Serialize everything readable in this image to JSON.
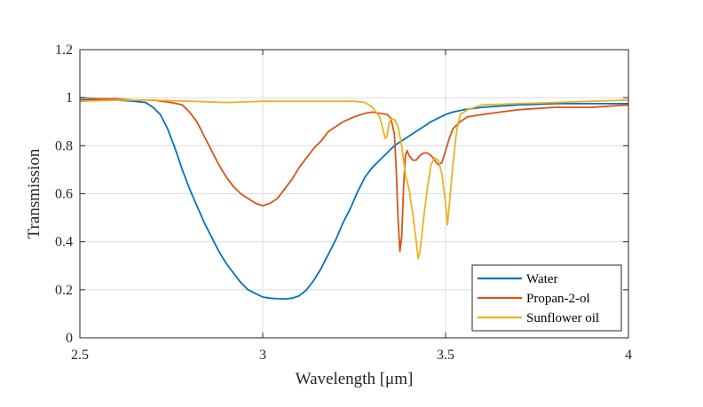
{
  "chart_data": {
    "type": "line",
    "title": "",
    "xlabel": "Wavelength [μm]",
    "ylabel": "Transmission",
    "xlim": [
      2.5,
      4
    ],
    "ylim": [
      0,
      1.2
    ],
    "xticks": [
      2.5,
      3,
      3.5,
      4
    ],
    "xtick_labels": [
      "2.5",
      "3",
      "3.5",
      "4"
    ],
    "yticks": [
      0,
      0.2,
      0.4,
      0.6,
      0.8,
      1,
      1.2
    ],
    "ytick_labels": [
      "0",
      "0.2",
      "0.4",
      "0.6",
      "0.8",
      "1",
      "1.2"
    ],
    "grid": true,
    "legend_position": "bottom-right",
    "series": [
      {
        "name": "Water",
        "color": "#0072bd",
        "points": [
          [
            2.5,
            0.99
          ],
          [
            2.55,
            0.99
          ],
          [
            2.6,
            0.99
          ],
          [
            2.65,
            0.985
          ],
          [
            2.68,
            0.98
          ],
          [
            2.7,
            0.96
          ],
          [
            2.72,
            0.93
          ],
          [
            2.74,
            0.87
          ],
          [
            2.76,
            0.79
          ],
          [
            2.78,
            0.7
          ],
          [
            2.8,
            0.62
          ],
          [
            2.82,
            0.55
          ],
          [
            2.84,
            0.48
          ],
          [
            2.86,
            0.42
          ],
          [
            2.88,
            0.36
          ],
          [
            2.9,
            0.31
          ],
          [
            2.92,
            0.27
          ],
          [
            2.94,
            0.23
          ],
          [
            2.96,
            0.2
          ],
          [
            2.98,
            0.185
          ],
          [
            3.0,
            0.17
          ],
          [
            3.02,
            0.165
          ],
          [
            3.04,
            0.163
          ],
          [
            3.06,
            0.162
          ],
          [
            3.08,
            0.165
          ],
          [
            3.1,
            0.175
          ],
          [
            3.12,
            0.2
          ],
          [
            3.14,
            0.24
          ],
          [
            3.16,
            0.29
          ],
          [
            3.18,
            0.35
          ],
          [
            3.2,
            0.41
          ],
          [
            3.22,
            0.48
          ],
          [
            3.24,
            0.54
          ],
          [
            3.26,
            0.61
          ],
          [
            3.28,
            0.67
          ],
          [
            3.3,
            0.71
          ],
          [
            3.32,
            0.74
          ],
          [
            3.34,
            0.77
          ],
          [
            3.36,
            0.8
          ],
          [
            3.38,
            0.82
          ],
          [
            3.4,
            0.84
          ],
          [
            3.42,
            0.86
          ],
          [
            3.44,
            0.88
          ],
          [
            3.46,
            0.9
          ],
          [
            3.48,
            0.915
          ],
          [
            3.5,
            0.93
          ],
          [
            3.52,
            0.94
          ],
          [
            3.55,
            0.95
          ],
          [
            3.6,
            0.96
          ],
          [
            3.65,
            0.965
          ],
          [
            3.7,
            0.97
          ],
          [
            3.8,
            0.975
          ],
          [
            3.9,
            0.975
          ],
          [
            4.0,
            0.975
          ]
        ]
      },
      {
        "name": "Propan-2-ol",
        "color": "#d95319",
        "points": [
          [
            2.5,
            1.0
          ],
          [
            2.55,
            0.995
          ],
          [
            2.6,
            0.995
          ],
          [
            2.65,
            0.99
          ],
          [
            2.7,
            0.99
          ],
          [
            2.75,
            0.98
          ],
          [
            2.78,
            0.97
          ],
          [
            2.8,
            0.94
          ],
          [
            2.82,
            0.9
          ],
          [
            2.84,
            0.84
          ],
          [
            2.86,
            0.78
          ],
          [
            2.88,
            0.72
          ],
          [
            2.9,
            0.67
          ],
          [
            2.92,
            0.63
          ],
          [
            2.94,
            0.6
          ],
          [
            2.96,
            0.58
          ],
          [
            2.98,
            0.56
          ],
          [
            3.0,
            0.55
          ],
          [
            3.02,
            0.56
          ],
          [
            3.04,
            0.58
          ],
          [
            3.06,
            0.62
          ],
          [
            3.08,
            0.66
          ],
          [
            3.1,
            0.71
          ],
          [
            3.12,
            0.75
          ],
          [
            3.14,
            0.79
          ],
          [
            3.16,
            0.82
          ],
          [
            3.18,
            0.86
          ],
          [
            3.2,
            0.88
          ],
          [
            3.22,
            0.9
          ],
          [
            3.25,
            0.92
          ],
          [
            3.28,
            0.935
          ],
          [
            3.3,
            0.94
          ],
          [
            3.32,
            0.935
          ],
          [
            3.34,
            0.93
          ],
          [
            3.35,
            0.915
          ],
          [
            3.36,
            0.85
          ],
          [
            3.365,
            0.7
          ],
          [
            3.37,
            0.5
          ],
          [
            3.375,
            0.36
          ],
          [
            3.38,
            0.42
          ],
          [
            3.385,
            0.62
          ],
          [
            3.39,
            0.76
          ],
          [
            3.395,
            0.78
          ],
          [
            3.4,
            0.76
          ],
          [
            3.41,
            0.74
          ],
          [
            3.42,
            0.74
          ],
          [
            3.43,
            0.76
          ],
          [
            3.44,
            0.77
          ],
          [
            3.45,
            0.77
          ],
          [
            3.46,
            0.76
          ],
          [
            3.47,
            0.74
          ],
          [
            3.48,
            0.72
          ],
          [
            3.49,
            0.73
          ],
          [
            3.5,
            0.78
          ],
          [
            3.51,
            0.83
          ],
          [
            3.52,
            0.87
          ],
          [
            3.54,
            0.9
          ],
          [
            3.56,
            0.92
          ],
          [
            3.6,
            0.93
          ],
          [
            3.65,
            0.94
          ],
          [
            3.7,
            0.95
          ],
          [
            3.8,
            0.96
          ],
          [
            3.9,
            0.96
          ],
          [
            4.0,
            0.97
          ]
        ]
      },
      {
        "name": "Sunflower oil",
        "color": "#edb120",
        "points": [
          [
            2.5,
            0.985
          ],
          [
            2.6,
            0.99
          ],
          [
            2.7,
            0.99
          ],
          [
            2.8,
            0.985
          ],
          [
            2.9,
            0.98
          ],
          [
            3.0,
            0.985
          ],
          [
            3.1,
            0.985
          ],
          [
            3.2,
            0.985
          ],
          [
            3.25,
            0.985
          ],
          [
            3.28,
            0.98
          ],
          [
            3.3,
            0.96
          ],
          [
            3.32,
            0.92
          ],
          [
            3.335,
            0.83
          ],
          [
            3.34,
            0.84
          ],
          [
            3.345,
            0.89
          ],
          [
            3.35,
            0.91
          ],
          [
            3.36,
            0.91
          ],
          [
            3.37,
            0.88
          ],
          [
            3.38,
            0.8
          ],
          [
            3.39,
            0.68
          ],
          [
            3.4,
            0.62
          ],
          [
            3.41,
            0.52
          ],
          [
            3.42,
            0.4
          ],
          [
            3.425,
            0.33
          ],
          [
            3.43,
            0.36
          ],
          [
            3.44,
            0.5
          ],
          [
            3.45,
            0.62
          ],
          [
            3.46,
            0.72
          ],
          [
            3.47,
            0.75
          ],
          [
            3.48,
            0.74
          ],
          [
            3.49,
            0.68
          ],
          [
            3.5,
            0.56
          ],
          [
            3.505,
            0.47
          ],
          [
            3.51,
            0.55
          ],
          [
            3.52,
            0.72
          ],
          [
            3.53,
            0.86
          ],
          [
            3.54,
            0.93
          ],
          [
            3.56,
            0.95
          ],
          [
            3.6,
            0.97
          ],
          [
            3.7,
            0.975
          ],
          [
            3.8,
            0.98
          ],
          [
            3.9,
            0.985
          ],
          [
            4.0,
            0.99
          ]
        ]
      }
    ]
  }
}
